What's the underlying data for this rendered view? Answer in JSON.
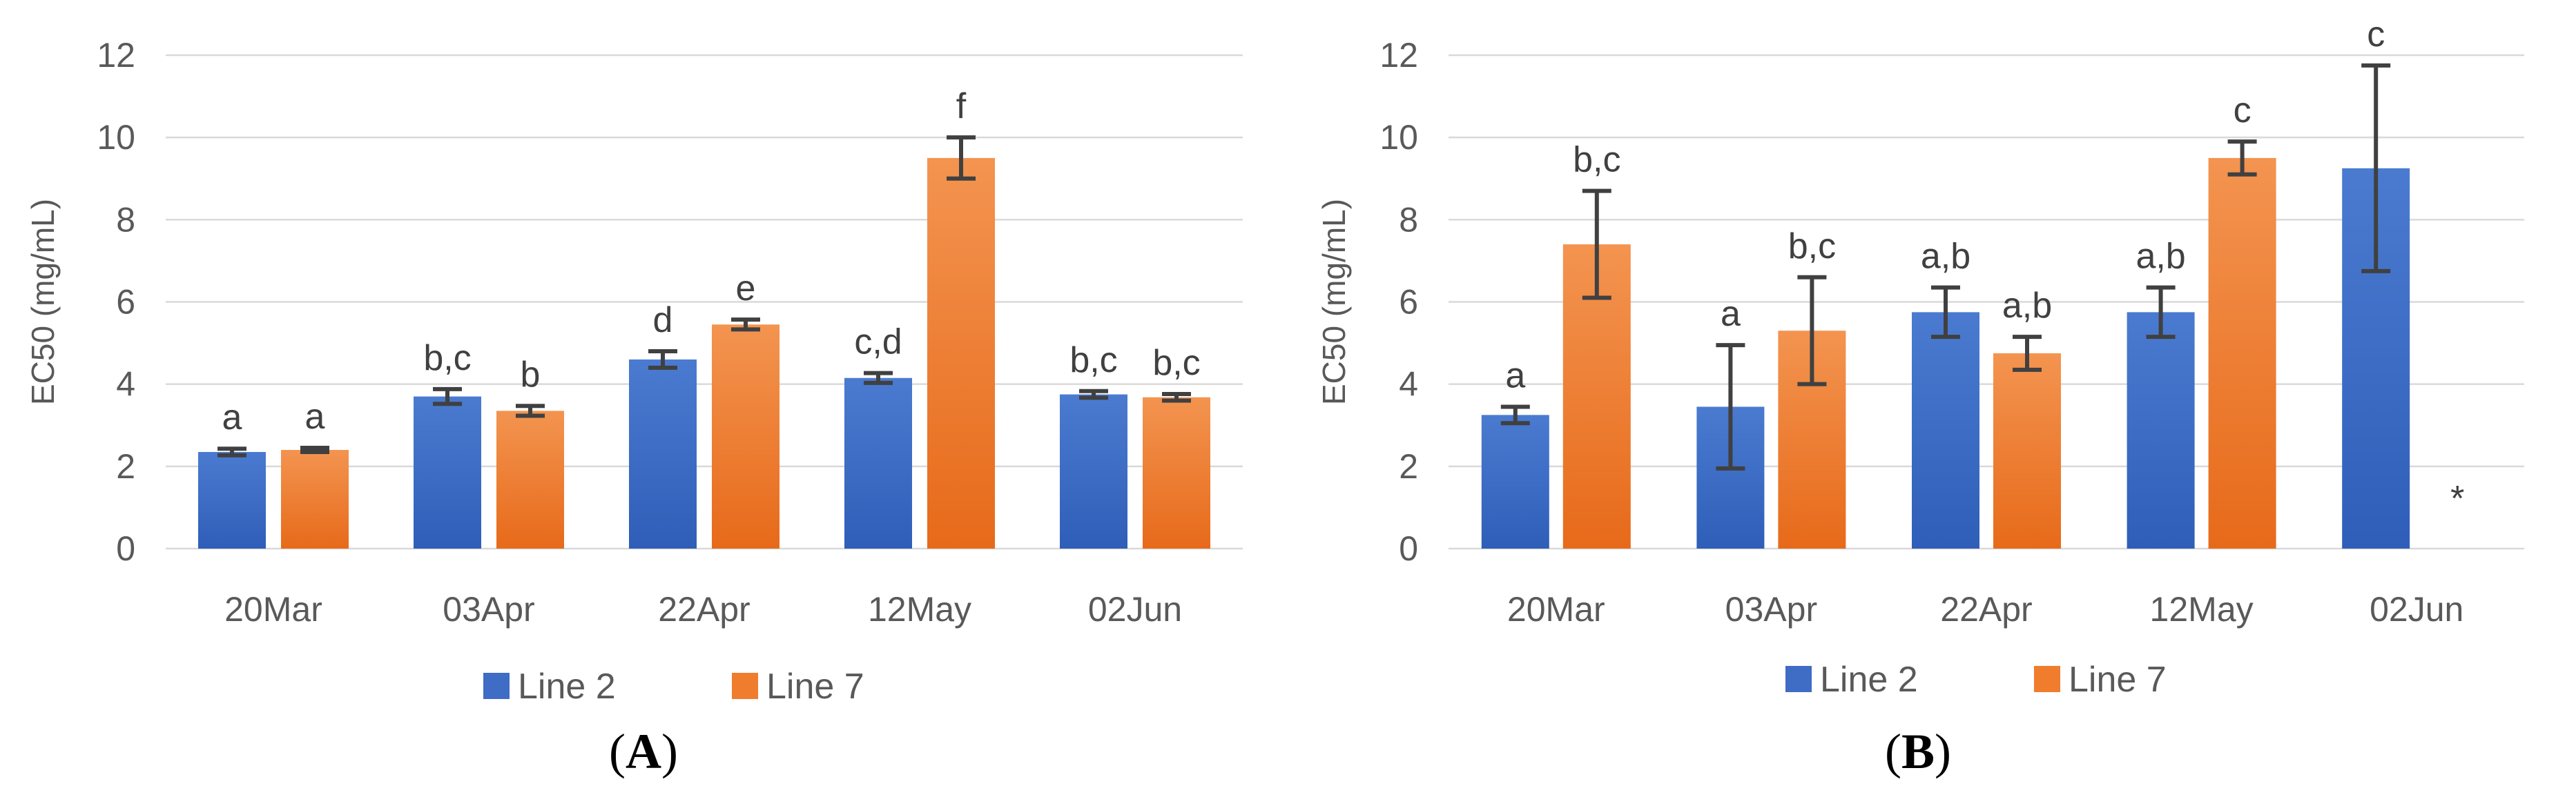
{
  "colors": {
    "line2": "#3f6cc4",
    "line7": "#ef7d2d",
    "grid": "#d9d9d9",
    "error": "#404040"
  },
  "chart_data": [
    {
      "type": "bar",
      "panel_label": "A",
      "ylabel": "EC50 (mg/mL)",
      "ylim": [
        0,
        12
      ],
      "yticks": [
        "0",
        "2",
        "4",
        "6",
        "8",
        "10",
        "12"
      ],
      "grid": true,
      "legend_position": "bottom",
      "categories": [
        "20Mar",
        "03Apr",
        "22Apr",
        "12May",
        "02Jun"
      ],
      "series": [
        {
          "name": "Line 2",
          "values": [
            2.35,
            3.7,
            4.6,
            4.15,
            3.75
          ],
          "errors": [
            0.08,
            0.18,
            0.2,
            0.12,
            0.08
          ],
          "labels": [
            "a",
            "b,c",
            "d",
            "c,d",
            "b,c"
          ]
        },
        {
          "name": "Line 7",
          "values": [
            2.4,
            3.35,
            5.45,
            9.5,
            3.68
          ],
          "errors": [
            0.05,
            0.12,
            0.12,
            0.5,
            0.08
          ],
          "labels": [
            "a",
            "b",
            "e",
            "f",
            "b,c"
          ]
        }
      ],
      "annotations": []
    },
    {
      "type": "bar",
      "panel_label": "B",
      "ylabel": "EC50 (mg/mL)",
      "ylim": [
        0,
        12
      ],
      "yticks": [
        "0",
        "2",
        "4",
        "6",
        "8",
        "10",
        "12"
      ],
      "grid": true,
      "legend_position": "bottom",
      "categories": [
        "20Mar",
        "03Apr",
        "22Apr",
        "12May",
        "02Jun"
      ],
      "series": [
        {
          "name": "Line 2",
          "values": [
            3.25,
            3.45,
            5.75,
            5.75,
            9.25
          ],
          "errors": [
            0.2,
            1.5,
            0.6,
            0.6,
            2.5
          ],
          "labels": [
            "a",
            "a",
            "a,b",
            "a,b",
            "c"
          ]
        },
        {
          "name": "Line 7",
          "values": [
            7.4,
            5.3,
            4.75,
            9.5,
            null
          ],
          "errors": [
            1.3,
            1.3,
            0.4,
            0.4,
            null
          ],
          "labels": [
            "b,c",
            "b,c",
            "a,b",
            "c",
            null
          ]
        }
      ],
      "annotations": [
        {
          "category": "02Jun",
          "series": "Line 7",
          "text": "*"
        }
      ]
    }
  ]
}
